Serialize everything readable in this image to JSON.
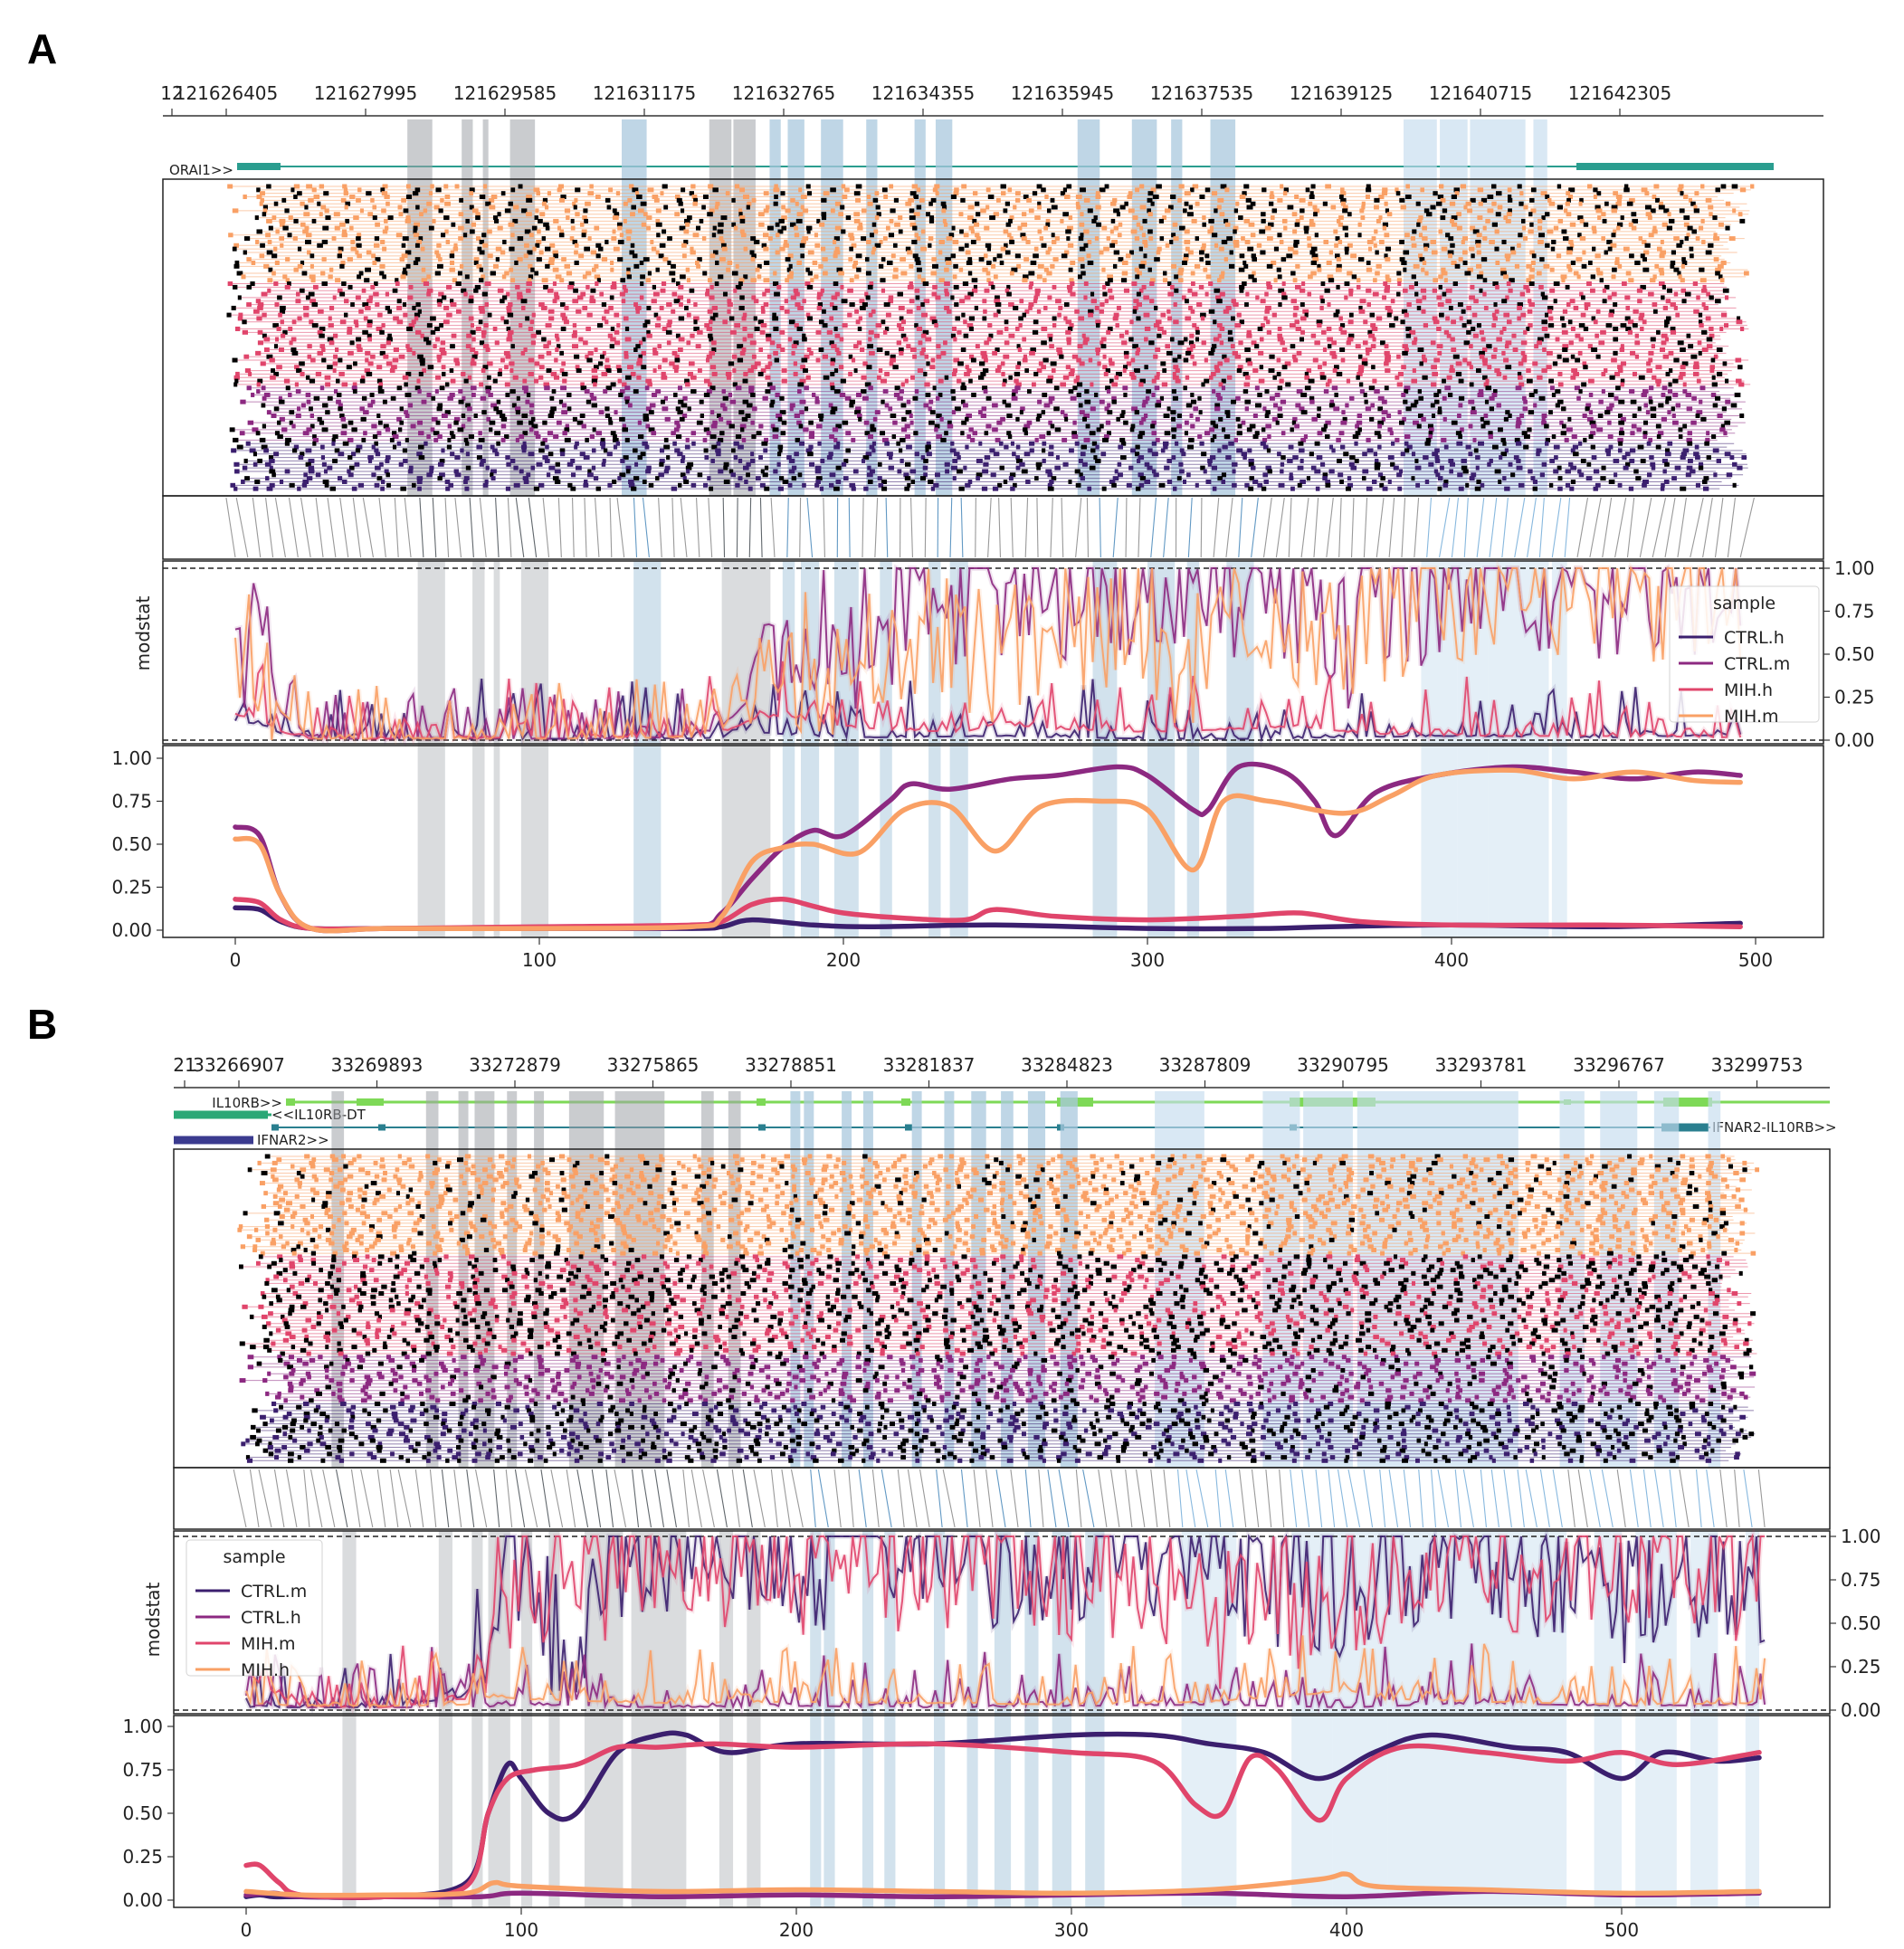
{
  "panels": [
    {
      "label": "A",
      "genomic_ticks": [
        "12",
        "121626405",
        "121627995",
        "121629585",
        "121631175",
        "121632765",
        "121634355",
        "121635945",
        "121637535",
        "121639125",
        "121640715",
        "121642305"
      ],
      "genes": [
        {
          "name": "ORAI1>>",
          "color": "#2a9d8f"
        }
      ],
      "legend": {
        "title": "sample",
        "position": "upper-right"
      },
      "modstat_ylabel": "modstat",
      "modstat_ticks": [
        "1.00",
        "0.75",
        "0.50",
        "0.25",
        "0.00"
      ],
      "smooth_ticks": [
        "1.00",
        "0.75",
        "0.50",
        "0.25",
        "0.00"
      ],
      "x_ticks": [
        "0",
        "100",
        "200",
        "300",
        "400",
        "500"
      ]
    },
    {
      "label": "B",
      "genomic_ticks": [
        "21",
        "33266907",
        "33269893",
        "33272879",
        "33275865",
        "33278851",
        "33281837",
        "33284823",
        "33287809",
        "33290795",
        "33293781",
        "33296767",
        "33299753"
      ],
      "genes": [
        {
          "name": "IL10RB>>",
          "color": "#7ed957"
        },
        {
          "name": "<<IL10RB-DT",
          "color": "#2aa876"
        },
        {
          "name": "IFNAR2-IL10RB>>",
          "color": "#2a7f8f"
        },
        {
          "name": "IFNAR2>>",
          "color": "#3b3b8f"
        }
      ],
      "legend": {
        "title": "sample",
        "position": "upper-left"
      },
      "modstat_ylabel": "modstat",
      "modstat_ticks": [
        "1.00",
        "0.75",
        "0.50",
        "0.25",
        "0.00"
      ],
      "smooth_ticks": [
        "1.00",
        "0.75",
        "0.50",
        "0.25",
        "0.00"
      ],
      "x_ticks": [
        "0",
        "100",
        "200",
        "300",
        "400",
        "500"
      ]
    }
  ],
  "chart_data": [
    {
      "type": "line",
      "panel": "A",
      "xlim": [
        -25,
        520
      ],
      "ylim": [
        0,
        1
      ],
      "series": [
        {
          "name": "CTRL.h",
          "color": "#3b1f6e",
          "x": [
            0,
            8,
            15,
            25,
            50,
            100,
            150,
            160,
            170,
            190,
            210,
            250,
            300,
            340,
            360,
            400,
            450,
            495
          ],
          "values": [
            0.13,
            0.12,
            0.05,
            0.01,
            0.01,
            0.01,
            0.01,
            0.02,
            0.06,
            0.03,
            0.02,
            0.03,
            0.01,
            0.01,
            0.02,
            0.03,
            0.02,
            0.04
          ]
        },
        {
          "name": "CTRL.m",
          "color": "#8c2981",
          "x": [
            0,
            8,
            15,
            25,
            50,
            100,
            150,
            160,
            170,
            180,
            190,
            200,
            215,
            222,
            235,
            255,
            270,
            290,
            300,
            315,
            320,
            330,
            345,
            355,
            362,
            375,
            395,
            420,
            440,
            460,
            480,
            495
          ],
          "values": [
            0.6,
            0.55,
            0.2,
            0.01,
            0.01,
            0.01,
            0.02,
            0.1,
            0.3,
            0.48,
            0.58,
            0.55,
            0.75,
            0.85,
            0.82,
            0.88,
            0.9,
            0.95,
            0.9,
            0.7,
            0.7,
            0.95,
            0.92,
            0.75,
            0.55,
            0.8,
            0.9,
            0.95,
            0.92,
            0.88,
            0.92,
            0.9
          ]
        },
        {
          "name": "MIH.h",
          "color": "#e0456b",
          "x": [
            0,
            8,
            15,
            25,
            50,
            100,
            150,
            160,
            170,
            180,
            190,
            200,
            220,
            240,
            250,
            270,
            300,
            330,
            350,
            370,
            400,
            450,
            495
          ],
          "values": [
            0.18,
            0.16,
            0.06,
            0.01,
            0.01,
            0.02,
            0.03,
            0.05,
            0.15,
            0.18,
            0.14,
            0.1,
            0.07,
            0.06,
            0.12,
            0.08,
            0.06,
            0.08,
            0.1,
            0.05,
            0.03,
            0.03,
            0.02
          ]
        },
        {
          "name": "MIH.m",
          "color": "#f9a065",
          "x": [
            0,
            8,
            15,
            25,
            50,
            100,
            150,
            160,
            170,
            180,
            190,
            205,
            220,
            235,
            250,
            265,
            285,
            300,
            315,
            325,
            340,
            365,
            380,
            395,
            420,
            440,
            460,
            480,
            495
          ],
          "values": [
            0.53,
            0.5,
            0.2,
            0.01,
            0.01,
            0.01,
            0.02,
            0.08,
            0.4,
            0.48,
            0.5,
            0.45,
            0.7,
            0.72,
            0.46,
            0.72,
            0.75,
            0.7,
            0.35,
            0.75,
            0.75,
            0.68,
            0.78,
            0.9,
            0.93,
            0.88,
            0.92,
            0.87,
            0.86
          ]
        }
      ]
    },
    {
      "type": "line",
      "panel": "B",
      "xlim": [
        -15,
        575
      ],
      "ylim": [
        0,
        1
      ],
      "series": [
        {
          "name": "CTRL.m",
          "color": "#3b1f6e",
          "x": [
            0,
            5,
            10,
            20,
            50,
            80,
            88,
            95,
            100,
            110,
            120,
            135,
            150,
            160,
            175,
            200,
            250,
            300,
            330,
            350,
            370,
            390,
            410,
            430,
            460,
            480,
            500,
            515,
            535,
            550
          ],
          "values": [
            0.02,
            0.03,
            0.02,
            0.02,
            0.02,
            0.1,
            0.5,
            0.78,
            0.7,
            0.5,
            0.5,
            0.85,
            0.95,
            0.95,
            0.85,
            0.9,
            0.9,
            0.95,
            0.95,
            0.9,
            0.85,
            0.7,
            0.85,
            0.95,
            0.88,
            0.85,
            0.7,
            0.85,
            0.8,
            0.82
          ]
        },
        {
          "name": "CTRL.h",
          "color": "#8c2981",
          "x": [
            0,
            10,
            20,
            50,
            85,
            100,
            150,
            200,
            250,
            300,
            350,
            400,
            450,
            500,
            550
          ],
          "values": [
            0.03,
            0.04,
            0.02,
            0.02,
            0.02,
            0.04,
            0.02,
            0.03,
            0.02,
            0.03,
            0.04,
            0.02,
            0.05,
            0.03,
            0.04
          ]
        },
        {
          "name": "MIH.m",
          "color": "#e0456b",
          "x": [
            0,
            5,
            12,
            20,
            50,
            80,
            88,
            95,
            105,
            120,
            135,
            150,
            170,
            200,
            250,
            300,
            330,
            345,
            355,
            365,
            375,
            390,
            400,
            420,
            450,
            480,
            500,
            520,
            550
          ],
          "values": [
            0.2,
            0.2,
            0.1,
            0.03,
            0.02,
            0.08,
            0.5,
            0.7,
            0.75,
            0.78,
            0.88,
            0.88,
            0.9,
            0.88,
            0.9,
            0.85,
            0.8,
            0.55,
            0.5,
            0.82,
            0.75,
            0.46,
            0.7,
            0.88,
            0.85,
            0.8,
            0.85,
            0.78,
            0.85
          ]
        },
        {
          "name": "MIH.h",
          "color": "#f9a065",
          "x": [
            0,
            20,
            50,
            80,
            90,
            100,
            150,
            200,
            250,
            300,
            350,
            390,
            400,
            410,
            450,
            500,
            550
          ],
          "values": [
            0.05,
            0.03,
            0.03,
            0.04,
            0.1,
            0.08,
            0.05,
            0.06,
            0.05,
            0.04,
            0.06,
            0.12,
            0.15,
            0.08,
            0.06,
            0.04,
            0.05
          ]
        }
      ]
    }
  ]
}
